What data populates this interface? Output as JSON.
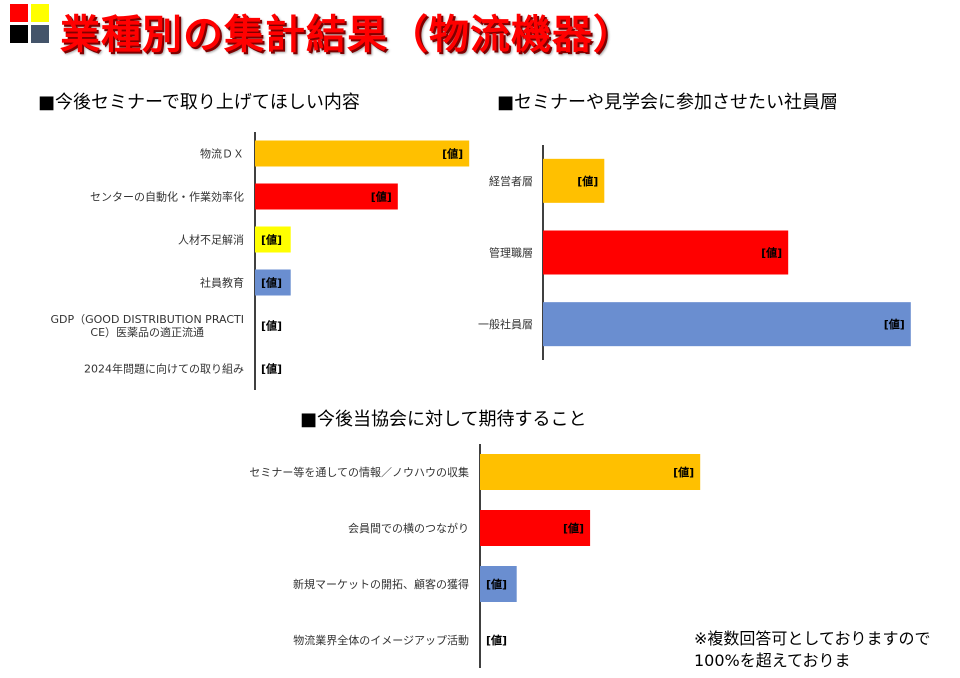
{
  "title": "業種別の集計結果（物流機器）",
  "note": "※複数回答可としておりますので100%を超えておりま",
  "colors": {
    "orange": "#ffc000",
    "red": "#ff0000",
    "yellow": "#ffff00",
    "blue": "#6a8ed0"
  },
  "chart_data": [
    {
      "type": "bar",
      "orientation": "horizontal",
      "title": "■今後セミナーで取り上げてほしい内容",
      "categories": [
        "物流ＤＸ",
        "センターの自動化・作業効率化",
        "人材不足解消",
        "社員教育",
        "GDP（GOOD DISTRIBUTION PRACTICE）医薬品の適正流通",
        "2024年問題に向けての取り組み"
      ],
      "values": [
        6,
        4,
        1,
        1,
        0,
        0
      ],
      "data_labels": [
        "[値]",
        "[値]",
        "[値]",
        "[値]",
        "[値]",
        "[値]"
      ],
      "colors": [
        "#ffc000",
        "#ff0000",
        "#ffff00",
        "#6a8ed0",
        "#ffc000",
        "#ffc000"
      ],
      "xlim": [
        0,
        6
      ],
      "grid": false,
      "legend": "none"
    },
    {
      "type": "bar",
      "orientation": "horizontal",
      "title": "■セミナーや見学会に参加させたい社員層",
      "categories": [
        "経営者層",
        "管理職層",
        "一般社員層"
      ],
      "values": [
        1,
        4,
        6
      ],
      "data_labels": [
        "[値]",
        "[値]",
        "[値]"
      ],
      "colors": [
        "#ffc000",
        "#ff0000",
        "#6a8ed0"
      ],
      "xlim": [
        0,
        6
      ],
      "grid": false,
      "legend": "none"
    },
    {
      "type": "bar",
      "orientation": "horizontal",
      "title": "■今後当協会に対して期待すること",
      "categories": [
        "セミナー等を通しての情報／ノウハウの収集",
        "会員間での横のつながり",
        "新規マーケットの開拓、顧客の獲得",
        "物流業界全体のイメージアップ活動"
      ],
      "values": [
        6,
        3,
        1,
        0
      ],
      "data_labels": [
        "[値]",
        "[値]",
        "[値]",
        "[値]"
      ],
      "colors": [
        "#ffc000",
        "#ff0000",
        "#6a8ed0",
        "#ffc000"
      ],
      "xlim": [
        0,
        6
      ],
      "grid": false,
      "legend": "none"
    }
  ]
}
